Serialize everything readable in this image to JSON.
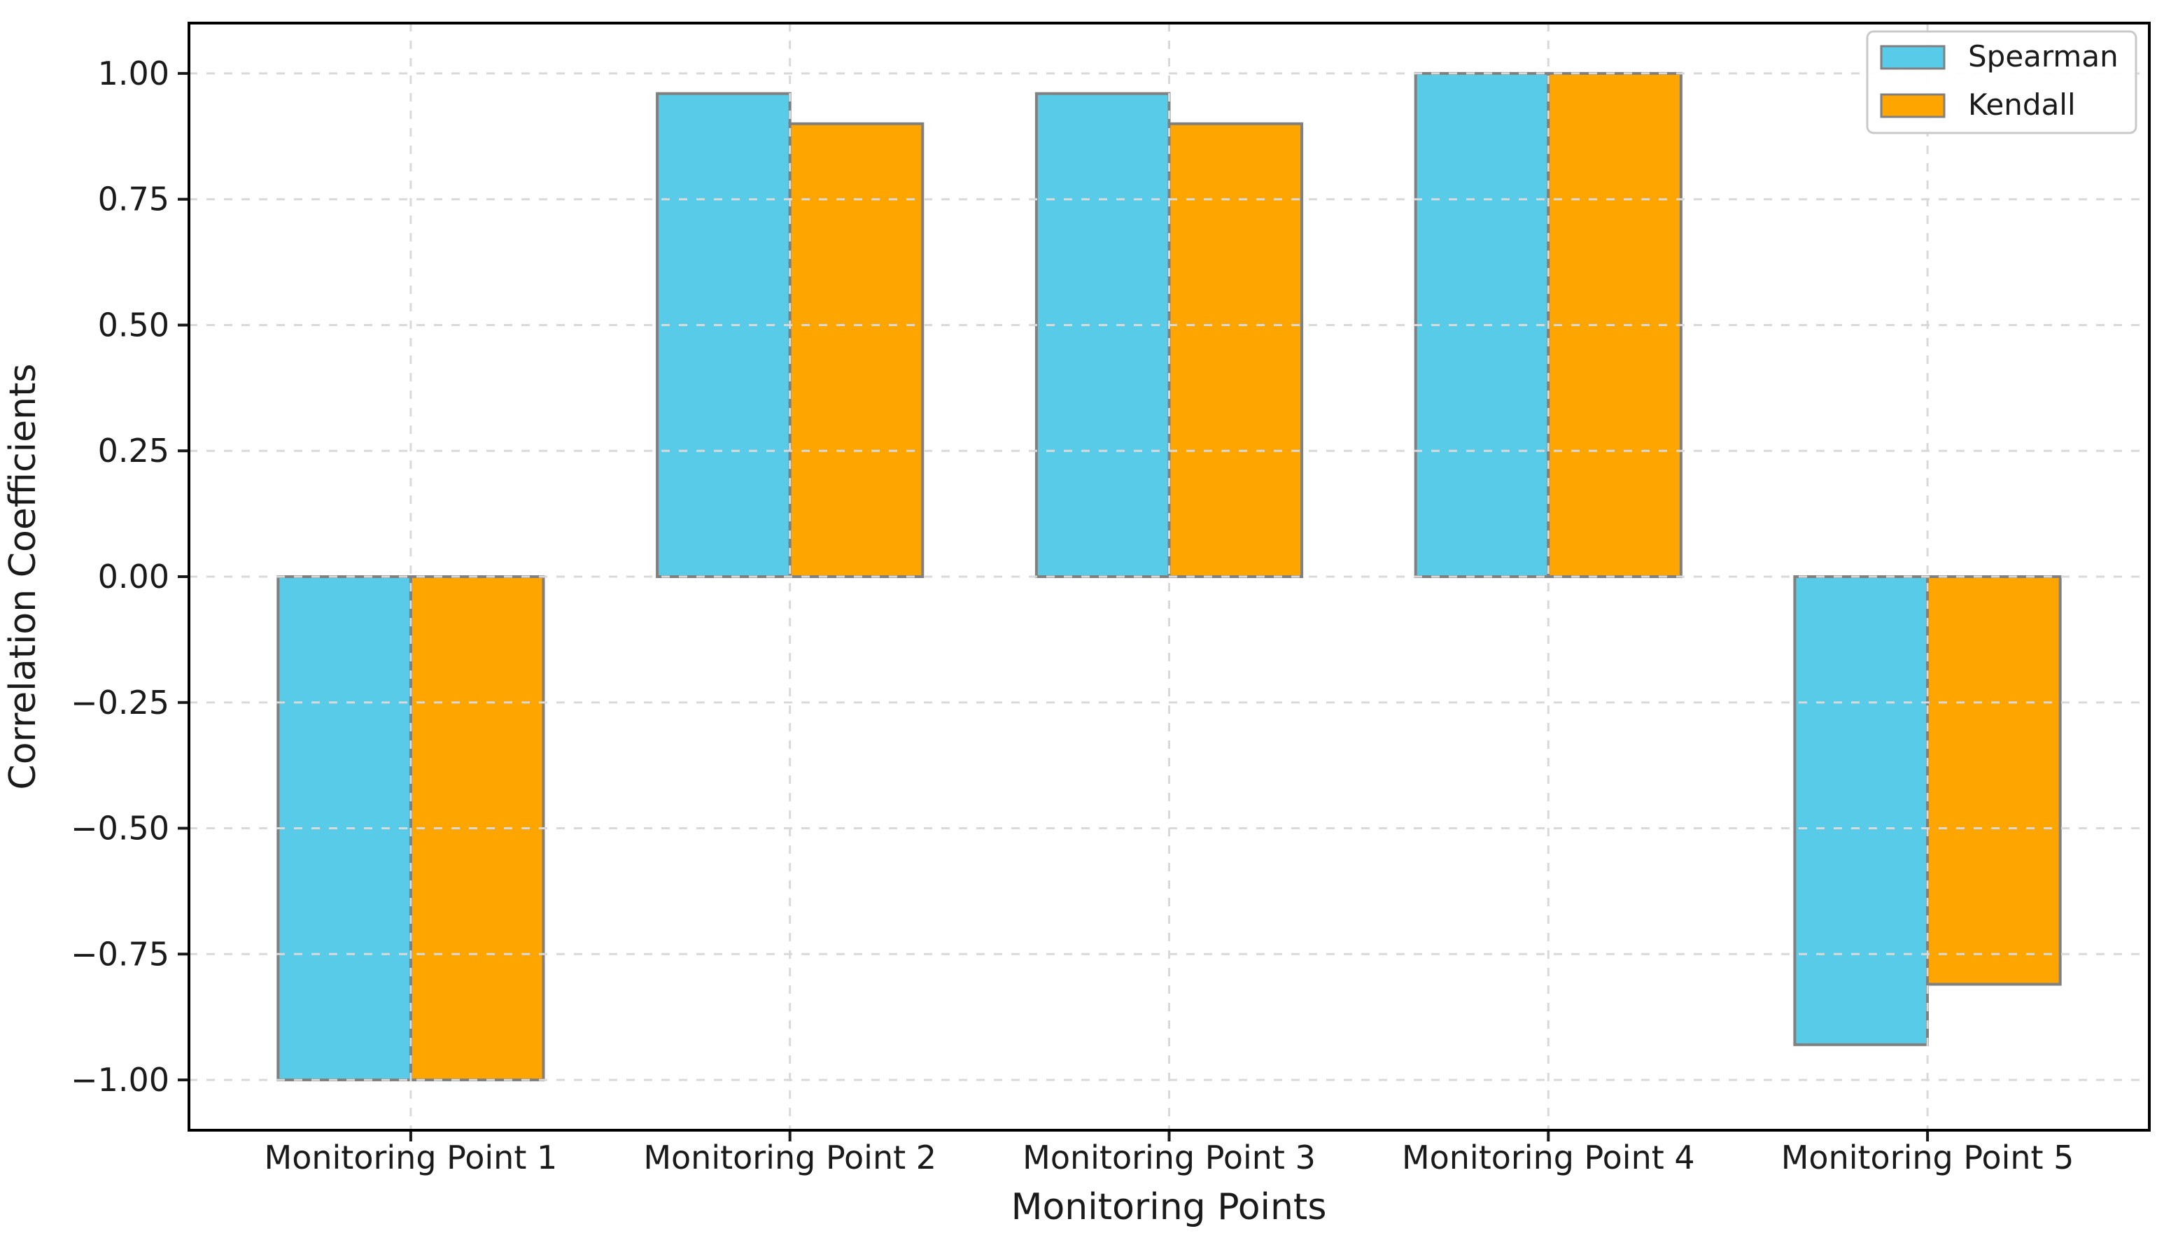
{
  "chart_data": {
    "type": "bar",
    "title": "",
    "xlabel": "Monitoring Points",
    "ylabel": "Correlation Coefficients",
    "categories": [
      "Monitoring Point 1",
      "Monitoring Point 2",
      "Monitoring Point 3",
      "Monitoring Point 4",
      "Monitoring Point 5"
    ],
    "series": [
      {
        "name": "Spearman",
        "color": "#57CBE8",
        "values": [
          -1.0,
          0.96,
          0.96,
          1.0,
          -0.93
        ]
      },
      {
        "name": "Kendall",
        "color": "#FFA500",
        "values": [
          -1.0,
          0.9,
          0.9,
          1.0,
          -0.81
        ]
      }
    ],
    "bar_edge_color": "#808080",
    "ylim": [
      -1.1,
      1.1
    ],
    "yticks": [
      {
        "v": 1.0,
        "label": "1.00"
      },
      {
        "v": 0.75,
        "label": "0.75"
      },
      {
        "v": 0.5,
        "label": "0.50"
      },
      {
        "v": 0.25,
        "label": "0.25"
      },
      {
        "v": 0.0,
        "label": "0.00"
      },
      {
        "v": -0.25,
        "label": "−0.25"
      },
      {
        "v": -0.5,
        "label": "−0.50"
      },
      {
        "v": -0.75,
        "label": "−0.75"
      },
      {
        "v": -1.0,
        "label": "−1.00"
      }
    ],
    "grid": true,
    "grid_style": "dashed",
    "grid_color": "#D9D9D9",
    "spine_color": "#000000",
    "legend_position": "upper right",
    "legend": [
      "Spearman",
      "Kendall"
    ]
  }
}
